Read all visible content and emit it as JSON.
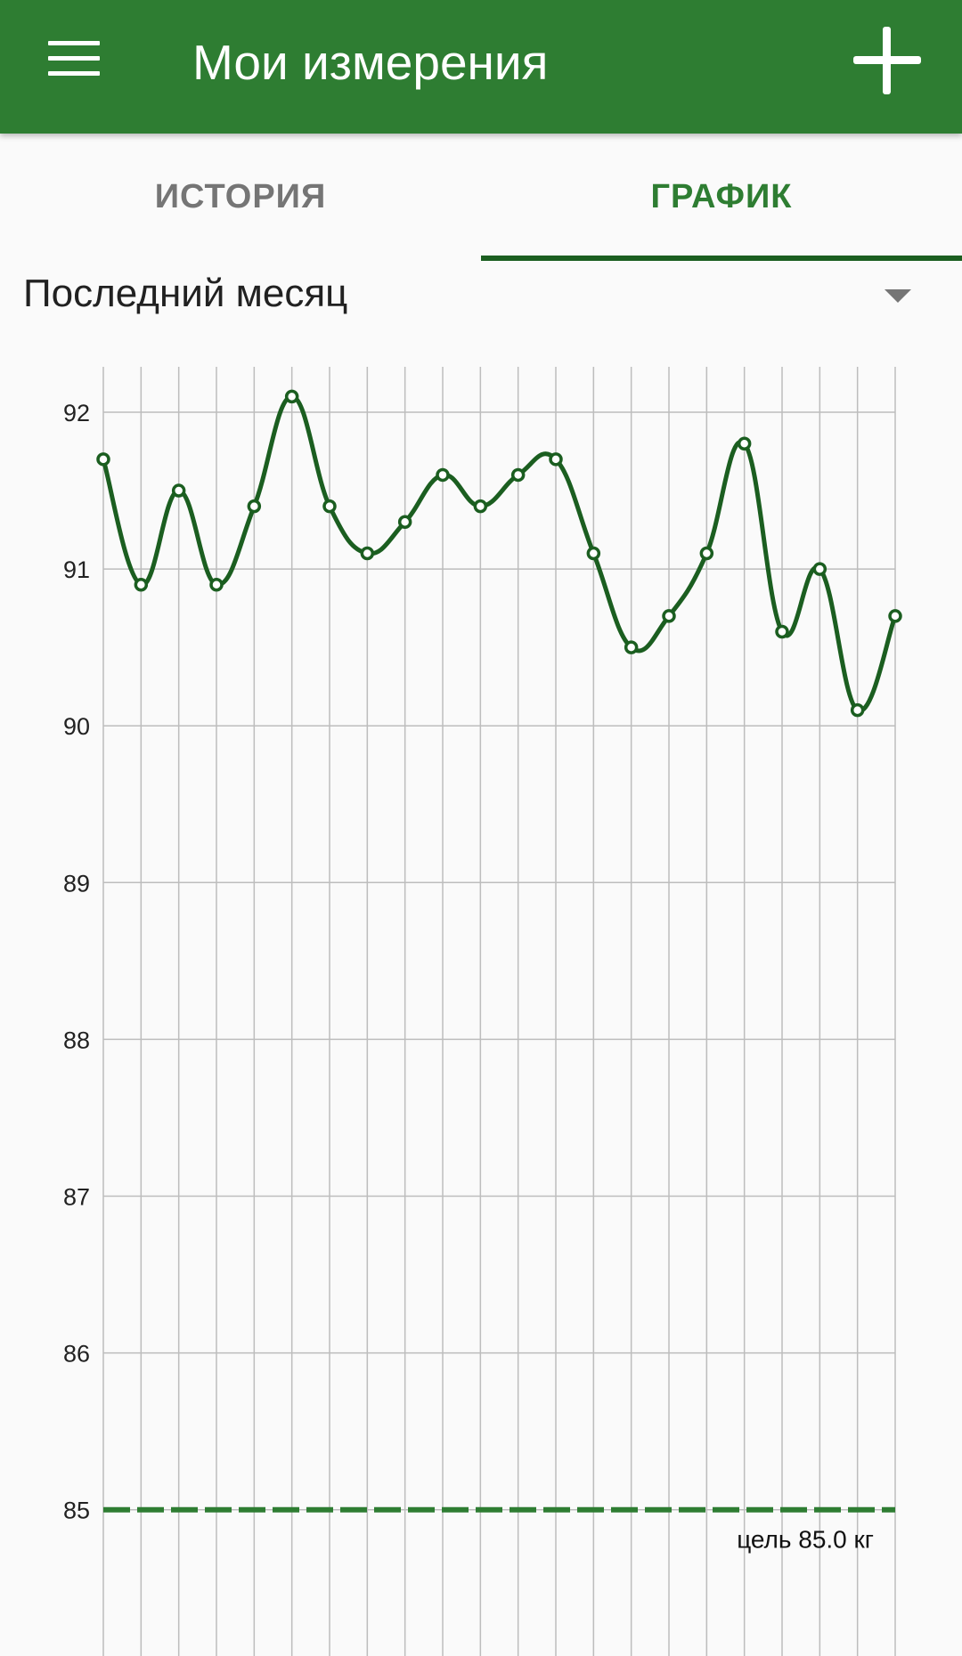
{
  "appbar": {
    "title": "Мои измерения",
    "menu_icon": "hamburger-menu-icon",
    "add_icon": "plus-icon"
  },
  "tabs": [
    {
      "label": "ИСТОРИЯ",
      "active": false
    },
    {
      "label": "ГРАФИК",
      "active": true
    }
  ],
  "period": {
    "selected": "Последний месяц"
  },
  "colors": {
    "appbar": "#2e7d32",
    "line": "#1b5e20",
    "goal": "#2e7d32",
    "grid": "#bdbdbd"
  },
  "chart_data": {
    "type": "line",
    "smooth": true,
    "markers": "hollow-circle",
    "values": [
      91.7,
      90.9,
      91.5,
      90.9,
      91.4,
      92.1,
      91.4,
      91.1,
      91.3,
      91.6,
      91.4,
      91.6,
      91.7,
      91.1,
      90.5,
      90.7,
      91.1,
      91.8,
      90.6,
      91.0,
      90.1,
      90.7
    ],
    "yticks": [
      "92",
      "91",
      "90",
      "89",
      "88",
      "87",
      "86",
      "85"
    ],
    "ylim": [
      84,
      92.4
    ],
    "grid": true,
    "goal": {
      "value": 85,
      "label": "цель 85.0 кг"
    }
  }
}
